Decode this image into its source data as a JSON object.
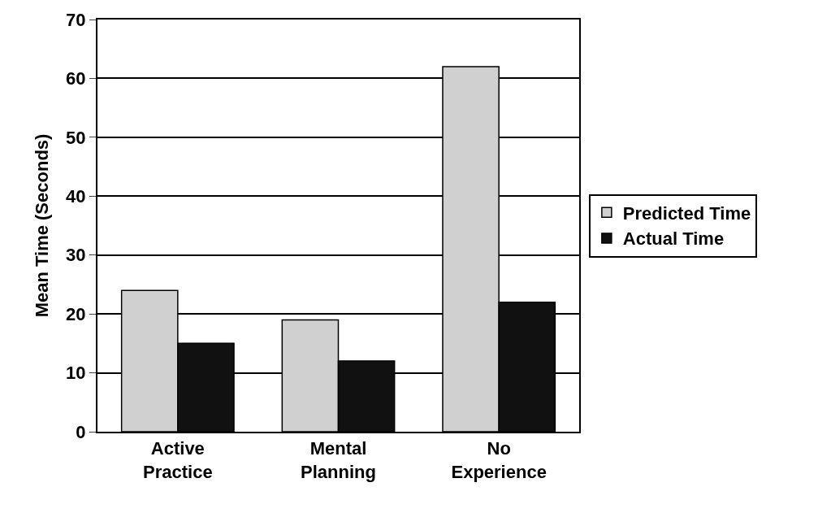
{
  "chart_data": {
    "type": "bar",
    "ylabel": "Mean Time (Seconds)",
    "categories": [
      "Active\nPractice",
      "Mental\nPlanning",
      "No\nExperience"
    ],
    "series": [
      {
        "name": "Predicted Time",
        "color": "#d0d0d0",
        "values": [
          24,
          19,
          62
        ]
      },
      {
        "name": "Actual Time",
        "color": "#111111",
        "values": [
          15,
          12,
          22
        ]
      }
    ],
    "ylim": [
      0,
      70
    ],
    "yticks": [
      0,
      10,
      20,
      30,
      40,
      50,
      60,
      70
    ],
    "grid": "y",
    "legend": "right"
  }
}
